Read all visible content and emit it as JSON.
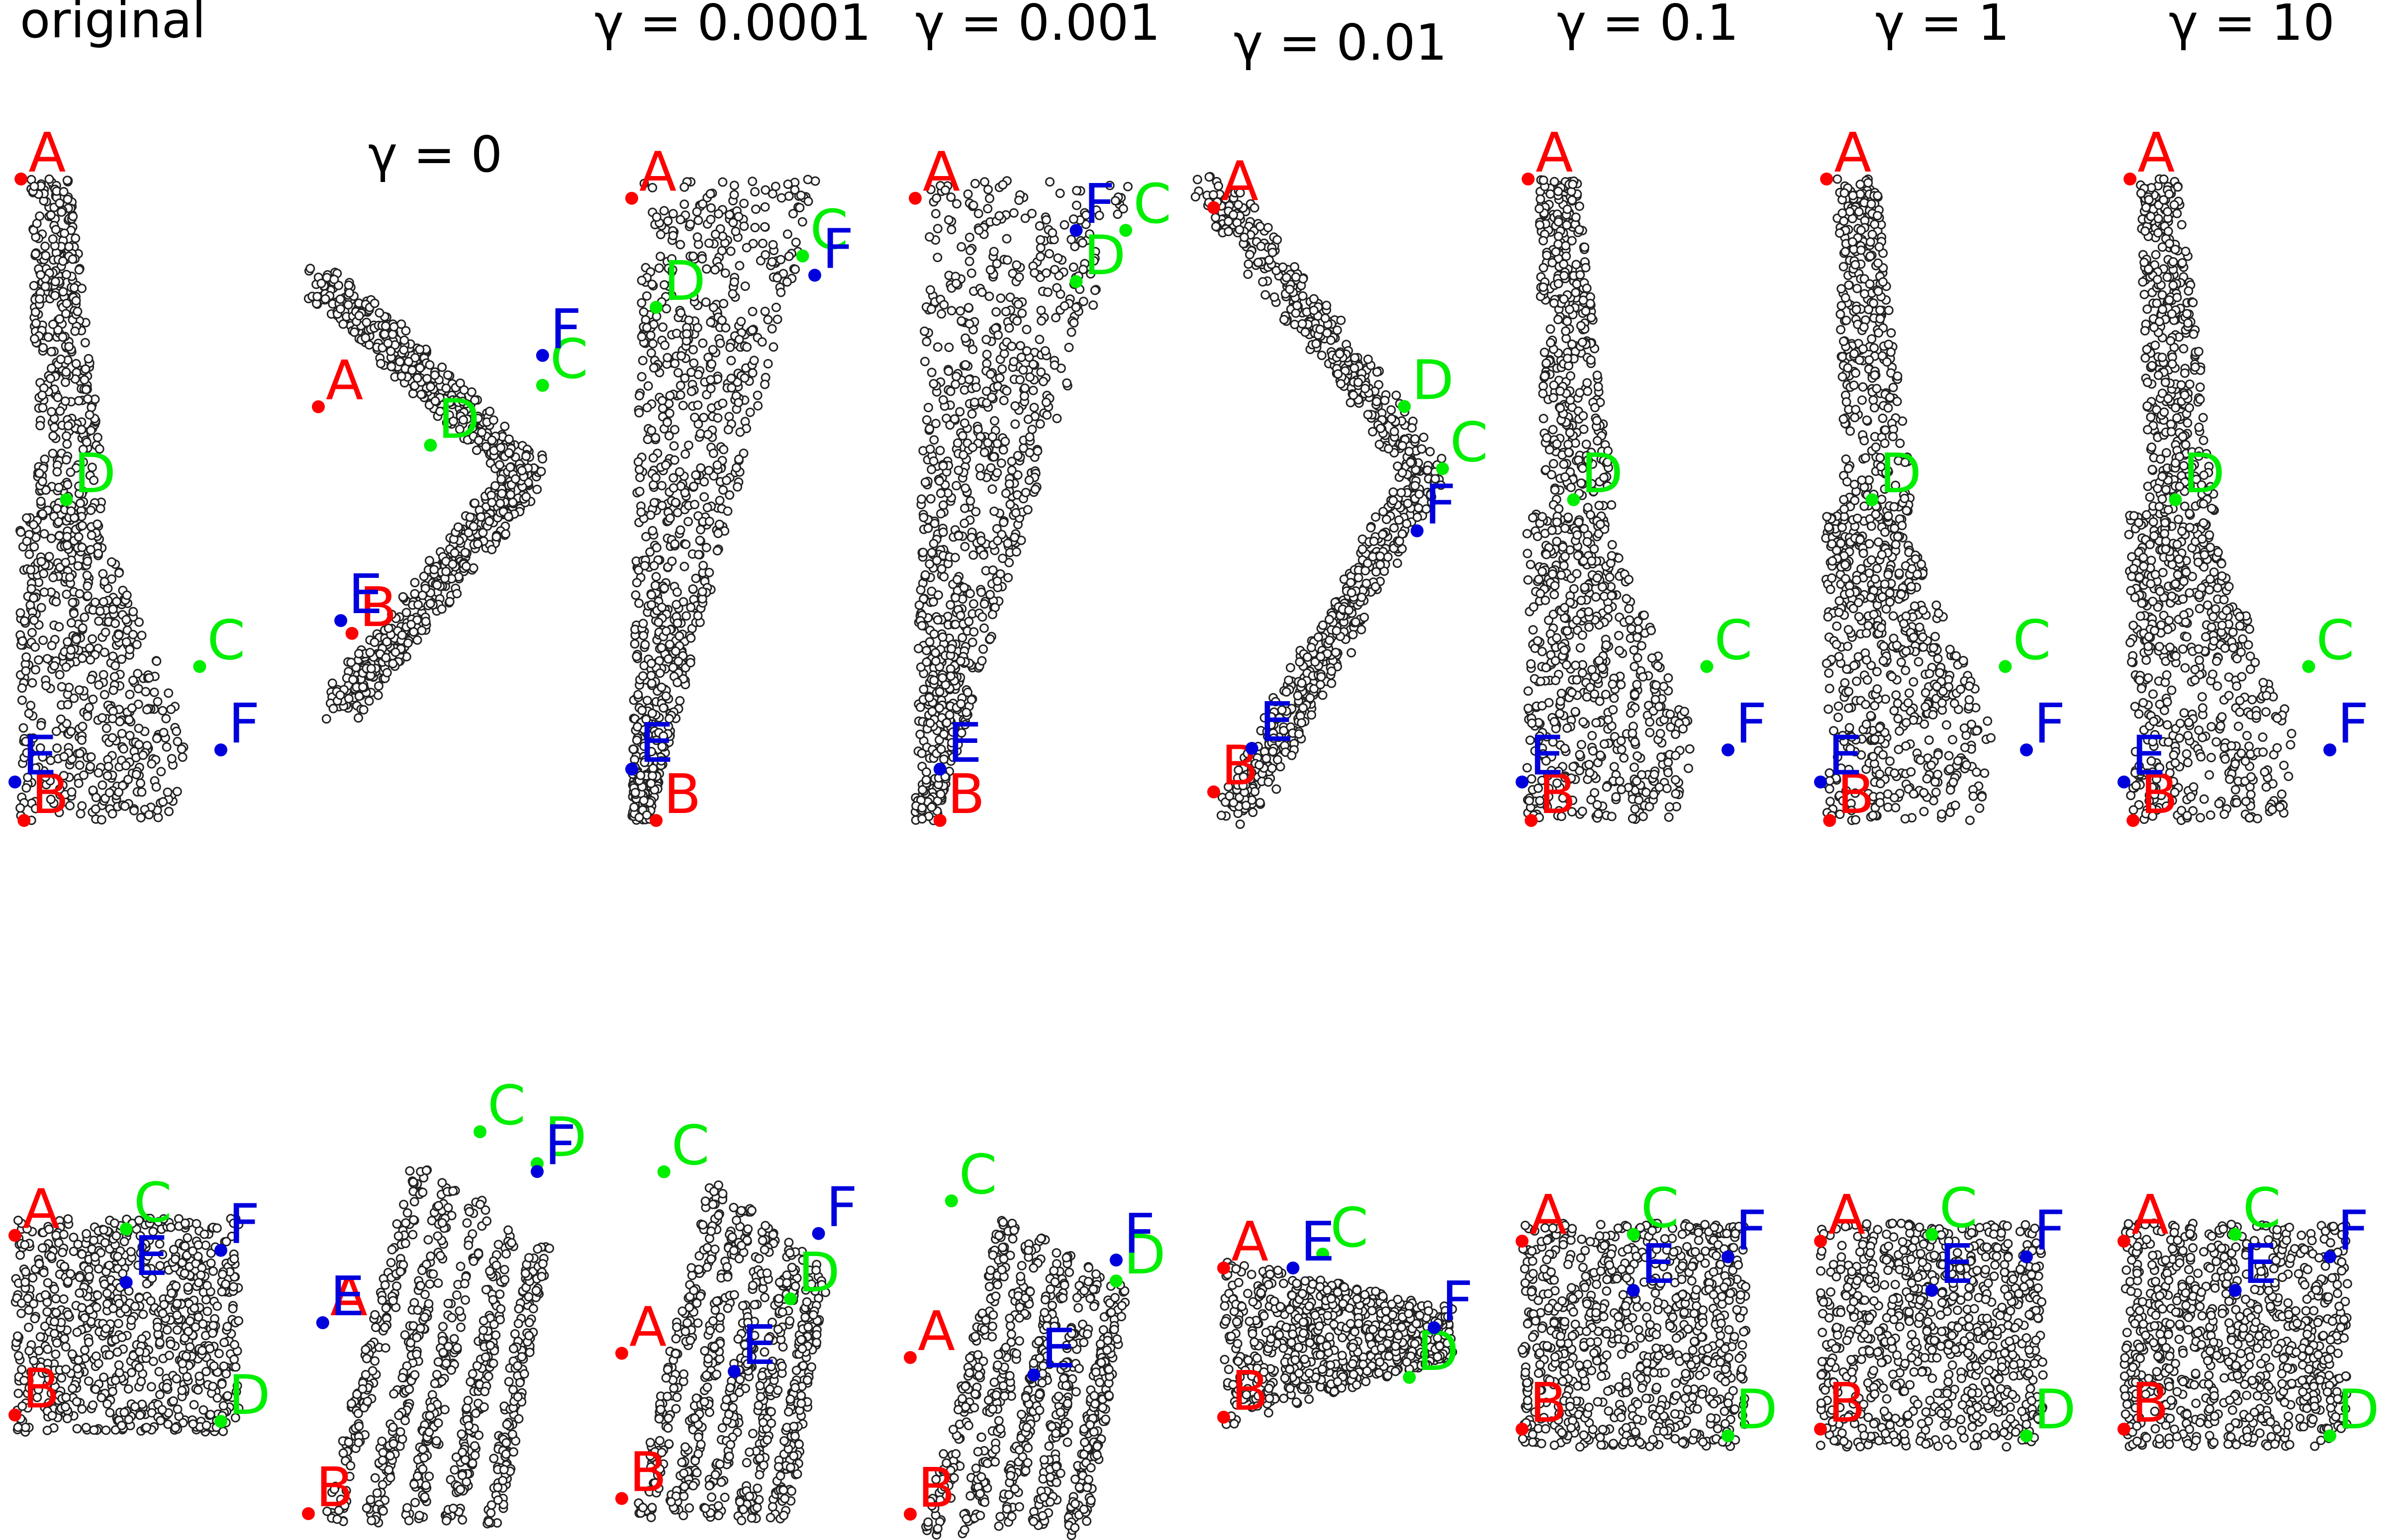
{
  "figure": {
    "panel_titles": [
      "original",
      "γ = 0",
      "γ = 0.0001",
      "γ = 0.001",
      "γ = 0.01",
      "γ = 0.1",
      "γ = 1",
      "γ = 10"
    ],
    "label_colors": {
      "A": "#ff0000",
      "B": "#ff0000",
      "C": "#00ee00",
      "D": "#00ee00",
      "E": "#0000dd",
      "F": "#0000dd"
    },
    "point_style": {
      "fill": "#ffffff",
      "stroke": "#222222"
    }
  },
  "chart_data": [
    {
      "type": "scatter",
      "title": "original",
      "row": "top",
      "shape": "fork",
      "landmarks": [
        {
          "label": "A",
          "x": 0.5,
          "y": 1.0
        },
        {
          "label": "B",
          "x": 0.55,
          "y": 0.0
        },
        {
          "label": "C",
          "x": 3.45,
          "y": 0.24
        },
        {
          "label": "D",
          "x": 1.25,
          "y": 0.5
        },
        {
          "label": "E",
          "x": 0.4,
          "y": 0.06
        },
        {
          "label": "F",
          "x": 3.8,
          "y": 0.11
        }
      ],
      "axes": "hidden"
    },
    {
      "type": "scatter",
      "title": "γ = 0",
      "row": "top",
      "shape": "collapsed fork",
      "landmarks": [
        {
          "label": "A",
          "x": 0.2,
          "y": 0.7
        },
        {
          "label": "B",
          "x": 0.35,
          "y": 0.17
        },
        {
          "label": "C",
          "x": 1.2,
          "y": 0.75
        },
        {
          "label": "D",
          "x": 0.7,
          "y": 0.61
        },
        {
          "label": "E",
          "x": 0.3,
          "y": 0.2
        },
        {
          "label": "F",
          "x": 1.2,
          "y": 0.82
        }
      ],
      "axes": "hidden"
    },
    {
      "type": "scatter",
      "title": "γ = 0.0001",
      "row": "top",
      "shape": "cone",
      "landmarks": [
        {
          "label": "A",
          "x": 0.2,
          "y": 0.97
        },
        {
          "label": "B",
          "x": 0.3,
          "y": 0.0
        },
        {
          "label": "C",
          "x": 0.9,
          "y": 0.88
        },
        {
          "label": "D",
          "x": 0.3,
          "y": 0.8
        },
        {
          "label": "E",
          "x": 0.2,
          "y": 0.08
        },
        {
          "label": "F",
          "x": 0.95,
          "y": 0.85
        }
      ],
      "axes": "hidden"
    },
    {
      "type": "scatter",
      "title": "γ = 0.001",
      "row": "top",
      "shape": "cone",
      "landmarks": [
        {
          "label": "A",
          "x": 0.1,
          "y": 0.97
        },
        {
          "label": "B",
          "x": 0.2,
          "y": 0.0
        },
        {
          "label": "C",
          "x": 0.95,
          "y": 0.92
        },
        {
          "label": "D",
          "x": 0.75,
          "y": 0.84
        },
        {
          "label": "E",
          "x": 0.2,
          "y": 0.08
        },
        {
          "label": "F",
          "x": 0.75,
          "y": 0.92
        }
      ],
      "axes": "hidden"
    },
    {
      "type": "scatter",
      "title": "γ = 0.01",
      "row": "top",
      "shape": "bent arm",
      "landmarks": [
        {
          "label": "A",
          "x": 0.1,
          "y": 0.97
        },
        {
          "label": "B",
          "x": 0.1,
          "y": 0.03
        },
        {
          "label": "C",
          "x": 1.0,
          "y": 0.55
        },
        {
          "label": "D",
          "x": 0.85,
          "y": 0.65
        },
        {
          "label": "E",
          "x": 0.25,
          "y": 0.1
        },
        {
          "label": "F",
          "x": 0.9,
          "y": 0.45
        }
      ],
      "axes": "hidden"
    },
    {
      "type": "scatter",
      "title": "γ = 0.1",
      "row": "top",
      "shape": "fork",
      "landmarks": [
        {
          "label": "A",
          "x": 0.5,
          "y": 1.0
        },
        {
          "label": "B",
          "x": 0.55,
          "y": 0.0
        },
        {
          "label": "C",
          "x": 3.45,
          "y": 0.24
        },
        {
          "label": "D",
          "x": 1.25,
          "y": 0.5
        },
        {
          "label": "E",
          "x": 0.4,
          "y": 0.06
        },
        {
          "label": "F",
          "x": 3.8,
          "y": 0.11
        }
      ],
      "axes": "hidden"
    },
    {
      "type": "scatter",
      "title": "γ = 1",
      "row": "top",
      "shape": "fork",
      "landmarks": [
        {
          "label": "A",
          "x": 0.5,
          "y": 1.0
        },
        {
          "label": "B",
          "x": 0.55,
          "y": 0.0
        },
        {
          "label": "C",
          "x": 3.45,
          "y": 0.24
        },
        {
          "label": "D",
          "x": 1.25,
          "y": 0.5
        },
        {
          "label": "E",
          "x": 0.4,
          "y": 0.06
        },
        {
          "label": "F",
          "x": 3.8,
          "y": 0.11
        }
      ],
      "axes": "hidden"
    },
    {
      "type": "scatter",
      "title": "γ = 10",
      "row": "top",
      "shape": "fork",
      "landmarks": [
        {
          "label": "A",
          "x": 0.5,
          "y": 1.0
        },
        {
          "label": "B",
          "x": 0.55,
          "y": 0.0
        },
        {
          "label": "C",
          "x": 3.45,
          "y": 0.24
        },
        {
          "label": "D",
          "x": 1.25,
          "y": 0.5
        },
        {
          "label": "E",
          "x": 0.4,
          "y": 0.06
        },
        {
          "label": "F",
          "x": 3.8,
          "y": 0.11
        }
      ],
      "axes": "hidden"
    },
    {
      "type": "scatter",
      "row": "bottom",
      "shape": "square",
      "landmarks": [
        {
          "label": "A",
          "x": 0.08,
          "y": 0.92
        },
        {
          "label": "B",
          "x": 0.08,
          "y": 0.08
        },
        {
          "label": "C",
          "x": 0.55,
          "y": 0.95
        },
        {
          "label": "D",
          "x": 0.95,
          "y": 0.05
        },
        {
          "label": "E",
          "x": 0.55,
          "y": 0.7
        },
        {
          "label": "F",
          "x": 0.95,
          "y": 0.85
        }
      ],
      "axes": "hidden"
    },
    {
      "type": "scatter",
      "row": "bottom",
      "shape": "strands",
      "landmarks": [
        {
          "label": "A",
          "x": 0.2,
          "y": 0.5
        },
        {
          "label": "B",
          "x": 0.15,
          "y": 0.02
        },
        {
          "label": "C",
          "x": 0.75,
          "y": 0.98
        },
        {
          "label": "D",
          "x": 0.95,
          "y": 0.9
        },
        {
          "label": "E",
          "x": 0.2,
          "y": 0.5
        },
        {
          "label": "F",
          "x": 0.95,
          "y": 0.88
        }
      ],
      "axes": "hidden"
    },
    {
      "type": "scatter",
      "row": "bottom",
      "shape": "strands",
      "landmarks": [
        {
          "label": "A",
          "x": 0.2,
          "y": 0.45
        },
        {
          "label": "B",
          "x": 0.2,
          "y": 0.05
        },
        {
          "label": "C",
          "x": 0.35,
          "y": 0.95
        },
        {
          "label": "D",
          "x": 0.8,
          "y": 0.6
        },
        {
          "label": "E",
          "x": 0.6,
          "y": 0.4
        },
        {
          "label": "F",
          "x": 0.9,
          "y": 0.78
        }
      ],
      "axes": "hidden"
    },
    {
      "type": "scatter",
      "row": "bottom",
      "shape": "strands",
      "landmarks": [
        {
          "label": "A",
          "x": 0.2,
          "y": 0.5
        },
        {
          "label": "B",
          "x": 0.2,
          "y": 0.05
        },
        {
          "label": "C",
          "x": 0.35,
          "y": 0.95
        },
        {
          "label": "D",
          "x": 0.95,
          "y": 0.72
        },
        {
          "label": "E",
          "x": 0.65,
          "y": 0.45
        },
        {
          "label": "F",
          "x": 0.95,
          "y": 0.78
        }
      ],
      "axes": "hidden"
    },
    {
      "type": "scatter",
      "row": "bottom",
      "shape": "flattened",
      "landmarks": [
        {
          "label": "A",
          "x": 0.1,
          "y": 0.85
        },
        {
          "label": "B",
          "x": 0.1,
          "y": 0.1
        },
        {
          "label": "C",
          "x": 0.5,
          "y": 0.92
        },
        {
          "label": "D",
          "x": 0.85,
          "y": 0.3
        },
        {
          "label": "E",
          "x": 0.38,
          "y": 0.85
        },
        {
          "label": "F",
          "x": 0.95,
          "y": 0.55
        }
      ],
      "axes": "hidden"
    },
    {
      "type": "scatter",
      "row": "bottom",
      "shape": "square",
      "landmarks": [
        {
          "label": "A",
          "x": 0.08,
          "y": 0.92
        },
        {
          "label": "B",
          "x": 0.08,
          "y": 0.08
        },
        {
          "label": "C",
          "x": 0.55,
          "y": 0.95
        },
        {
          "label": "D",
          "x": 0.95,
          "y": 0.05
        },
        {
          "label": "E",
          "x": 0.55,
          "y": 0.7
        },
        {
          "label": "F",
          "x": 0.95,
          "y": 0.85
        }
      ],
      "axes": "hidden"
    },
    {
      "type": "scatter",
      "row": "bottom",
      "shape": "square",
      "landmarks": [
        {
          "label": "A",
          "x": 0.08,
          "y": 0.92
        },
        {
          "label": "B",
          "x": 0.08,
          "y": 0.08
        },
        {
          "label": "C",
          "x": 0.55,
          "y": 0.95
        },
        {
          "label": "D",
          "x": 0.95,
          "y": 0.05
        },
        {
          "label": "E",
          "x": 0.55,
          "y": 0.7
        },
        {
          "label": "F",
          "x": 0.95,
          "y": 0.85
        }
      ],
      "axes": "hidden"
    },
    {
      "type": "scatter",
      "row": "bottom",
      "shape": "square",
      "landmarks": [
        {
          "label": "A",
          "x": 0.08,
          "y": 0.92
        },
        {
          "label": "B",
          "x": 0.08,
          "y": 0.08
        },
        {
          "label": "C",
          "x": 0.55,
          "y": 0.95
        },
        {
          "label": "D",
          "x": 0.95,
          "y": 0.05
        },
        {
          "label": "E",
          "x": 0.55,
          "y": 0.7
        },
        {
          "label": "F",
          "x": 0.95,
          "y": 0.85
        }
      ],
      "axes": "hidden"
    }
  ]
}
